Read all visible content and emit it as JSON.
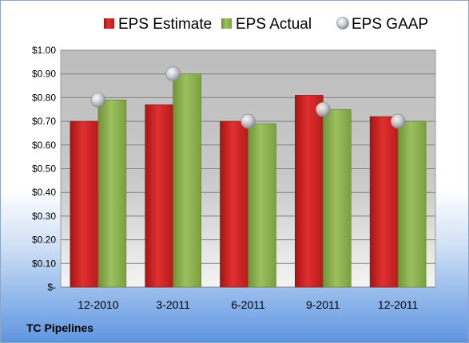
{
  "company": "TC Pipelines",
  "chart_data": {
    "type": "bar",
    "categories": [
      "12-2010",
      "3-2011",
      "6-2011",
      "9-2011",
      "12-2011"
    ],
    "series": [
      {
        "name": "EPS Estimate",
        "kind": "bar",
        "color": "#d42a2a",
        "values": [
          0.7,
          0.77,
          0.7,
          0.81,
          0.72
        ]
      },
      {
        "name": "EPS Actual",
        "kind": "bar",
        "color": "#8bb050",
        "values": [
          0.79,
          0.9,
          0.69,
          0.75,
          0.7
        ]
      },
      {
        "name": "EPS GAAP",
        "kind": "marker",
        "color": "#b8bcc4",
        "values": [
          0.79,
          0.9,
          0.7,
          0.75,
          0.7
        ]
      }
    ],
    "yticks": [
      "$-",
      "$0.10",
      "$0.20",
      "$0.30",
      "$0.40",
      "$0.50",
      "$0.60",
      "$0.70",
      "$0.80",
      "$0.90",
      "$1.00"
    ],
    "ylim": [
      0,
      1.0
    ],
    "grid": true,
    "legend_position": "top"
  }
}
